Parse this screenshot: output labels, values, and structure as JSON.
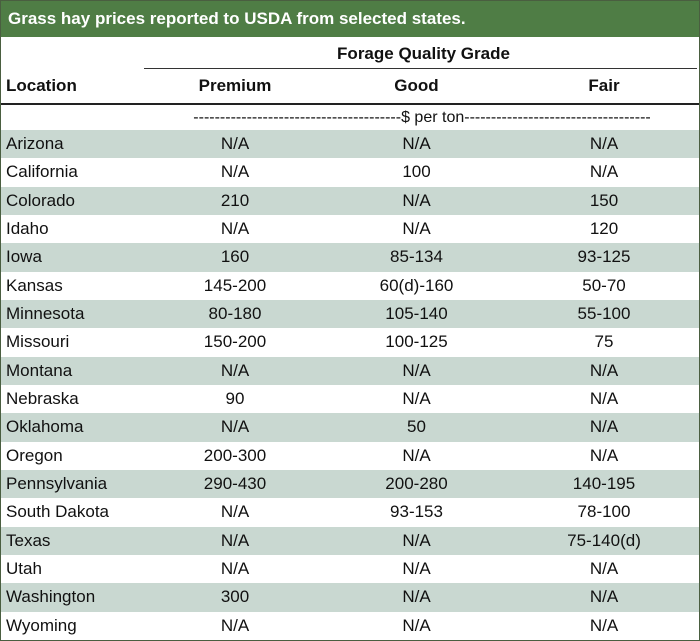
{
  "title": "Grass hay prices reported to USDA from selected states.",
  "group_header": "Forage Quality Grade",
  "columns": [
    "Location",
    "Premium",
    "Good",
    "Fair"
  ],
  "units": "---------------------------------------$ per ton-----------------------------------",
  "rows": [
    {
      "location": "Arizona",
      "premium": "N/A",
      "good": "N/A",
      "fair": "N/A"
    },
    {
      "location": "California",
      "premium": "N/A",
      "good": "100",
      "fair": "N/A"
    },
    {
      "location": "Colorado",
      "premium": "210",
      "good": "N/A",
      "fair": "150"
    },
    {
      "location": "Idaho",
      "premium": "N/A",
      "good": "N/A",
      "fair": "120"
    },
    {
      "location": "Iowa",
      "premium": "160",
      "good": "85-134",
      "fair": "93-125"
    },
    {
      "location": "Kansas",
      "premium": "145-200",
      "good": "60(d)-160",
      "fair": "50-70"
    },
    {
      "location": "Minnesota",
      "premium": "80-180",
      "good": "105-140",
      "fair": "55-100"
    },
    {
      "location": "Missouri",
      "premium": "150-200",
      "good": "100-125",
      "fair": "75"
    },
    {
      "location": "Montana",
      "premium": "N/A",
      "good": "N/A",
      "fair": "N/A"
    },
    {
      "location": "Nebraska",
      "premium": "90",
      "good": "N/A",
      "fair": "N/A"
    },
    {
      "location": "Oklahoma",
      "premium": "N/A",
      "good": "50",
      "fair": "N/A"
    },
    {
      "location": "Oregon",
      "premium": "200-300",
      "good": "N/A",
      "fair": "N/A"
    },
    {
      "location": "Pennsylvania",
      "premium": "290-430",
      "good": "200-280",
      "fair": "140-195"
    },
    {
      "location": "South Dakota",
      "premium": "N/A",
      "good": "93-153",
      "fair": "78-100"
    },
    {
      "location": "Texas",
      "premium": "N/A",
      "good": "N/A",
      "fair": "75-140(d)"
    },
    {
      "location": "Utah",
      "premium": "N/A",
      "good": "N/A",
      "fair": "N/A"
    },
    {
      "location": "Washington",
      "premium": "300",
      "good": "N/A",
      "fair": "N/A"
    },
    {
      "location": "Wyoming",
      "premium": "N/A",
      "good": "N/A",
      "fair": "N/A"
    }
  ],
  "colors": {
    "title_background": "#4f7d45",
    "stripe": "#c9d8d1"
  }
}
